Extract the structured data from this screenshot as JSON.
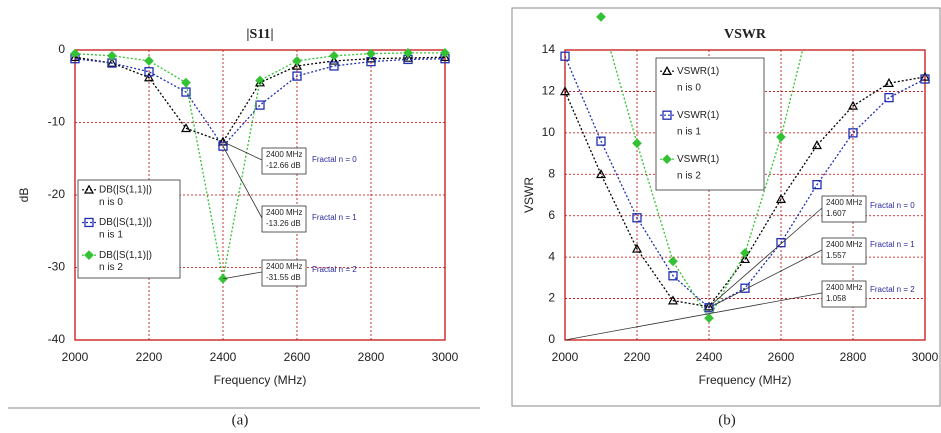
{
  "chart_data": [
    {
      "type": "line",
      "title": "|S11|",
      "xlabel": "Frequency (MHz)",
      "ylabel": "dB",
      "caption": "(a)",
      "x": [
        2000,
        2100,
        2200,
        2300,
        2400,
        2500,
        2600,
        2700,
        2800,
        2900,
        3000
      ],
      "xlim": [
        2000,
        3000
      ],
      "xticks": [
        2000,
        2200,
        2400,
        2600,
        2800,
        3000
      ],
      "ylim": [
        -40,
        0
      ],
      "yticks": [
        0,
        -10,
        -20,
        -30,
        -40
      ],
      "grid": true,
      "series": [
        {
          "name": "DB(|S(1,1)|)",
          "label": "n is  0",
          "color": "#000000",
          "marker": "triangle",
          "values": [
            -1.0,
            -1.8,
            -3.8,
            -10.8,
            -12.66,
            -4.5,
            -2.2,
            -1.5,
            -1.2,
            -1.1,
            -1.0
          ]
        },
        {
          "name": "DB(|S(1,1)|)",
          "label": "n is 1",
          "color": "#1f2fb0",
          "marker": "square",
          "values": [
            -1.2,
            -1.8,
            -3.0,
            -5.8,
            -13.26,
            -7.6,
            -3.6,
            -2.2,
            -1.6,
            -1.3,
            -1.2
          ]
        },
        {
          "name": "DB(|S(1,1)|)",
          "label": "n is 2",
          "color": "#33c233",
          "marker": "diamond",
          "values": [
            -0.5,
            -0.8,
            -1.5,
            -4.5,
            -31.55,
            -4.2,
            -1.5,
            -0.8,
            -0.5,
            -0.4,
            -0.4
          ]
        }
      ],
      "annotations": [
        {
          "lines": [
            "2400 MHz",
            "-12.66 dB"
          ],
          "tag": "Fractal n = 0"
        },
        {
          "lines": [
            "2400 MHz",
            "-13.26 dB"
          ],
          "tag": "Fractal n = 1"
        },
        {
          "lines": [
            "2400 MHz",
            "-31.55 dB"
          ],
          "tag": "Fractal n = 2"
        }
      ]
    },
    {
      "type": "line",
      "title": "VSWR",
      "xlabel": "Frequency (MHz)",
      "ylabel": "VSWR",
      "caption": "(b)",
      "x": [
        2000,
        2100,
        2200,
        2300,
        2400,
        2500,
        2600,
        2700,
        2800,
        2900,
        3000
      ],
      "xlim": [
        2000,
        3000
      ],
      "xticks": [
        2000,
        2200,
        2400,
        2600,
        2800,
        3000
      ],
      "ylim": [
        0,
        14
      ],
      "yticks": [
        0,
        2,
        4,
        6,
        8,
        10,
        12,
        14
      ],
      "grid": true,
      "series": [
        {
          "name": "VSWR(1)",
          "label": "n is  0",
          "color": "#000000",
          "marker": "triangle",
          "values": [
            12.0,
            8.0,
            4.4,
            1.9,
            1.607,
            3.9,
            6.8,
            9.4,
            11.3,
            12.4,
            12.7
          ]
        },
        {
          "name": "VSWR(1)",
          "label": "n is 1",
          "color": "#1f2fb0",
          "marker": "square",
          "values": [
            13.7,
            9.6,
            5.9,
            3.1,
            1.557,
            2.5,
            4.7,
            7.5,
            10.0,
            11.7,
            12.6
          ]
        },
        {
          "name": "VSWR(1)",
          "label": "n is 2",
          "color": "#33c233",
          "marker": "diamond",
          "values": [
            null,
            15.6,
            9.5,
            3.8,
            1.058,
            4.2,
            9.8,
            16.8,
            null,
            null,
            null
          ]
        }
      ],
      "annotations": [
        {
          "lines": [
            "2400 MHz",
            "1.607"
          ],
          "tag": "Fractal n = 0"
        },
        {
          "lines": [
            "2400 MHz",
            "1.557"
          ],
          "tag": "Fractal n = 1"
        },
        {
          "lines": [
            "2400 MHz",
            "1.058"
          ],
          "tag": "Fractal n = 2"
        }
      ]
    }
  ]
}
